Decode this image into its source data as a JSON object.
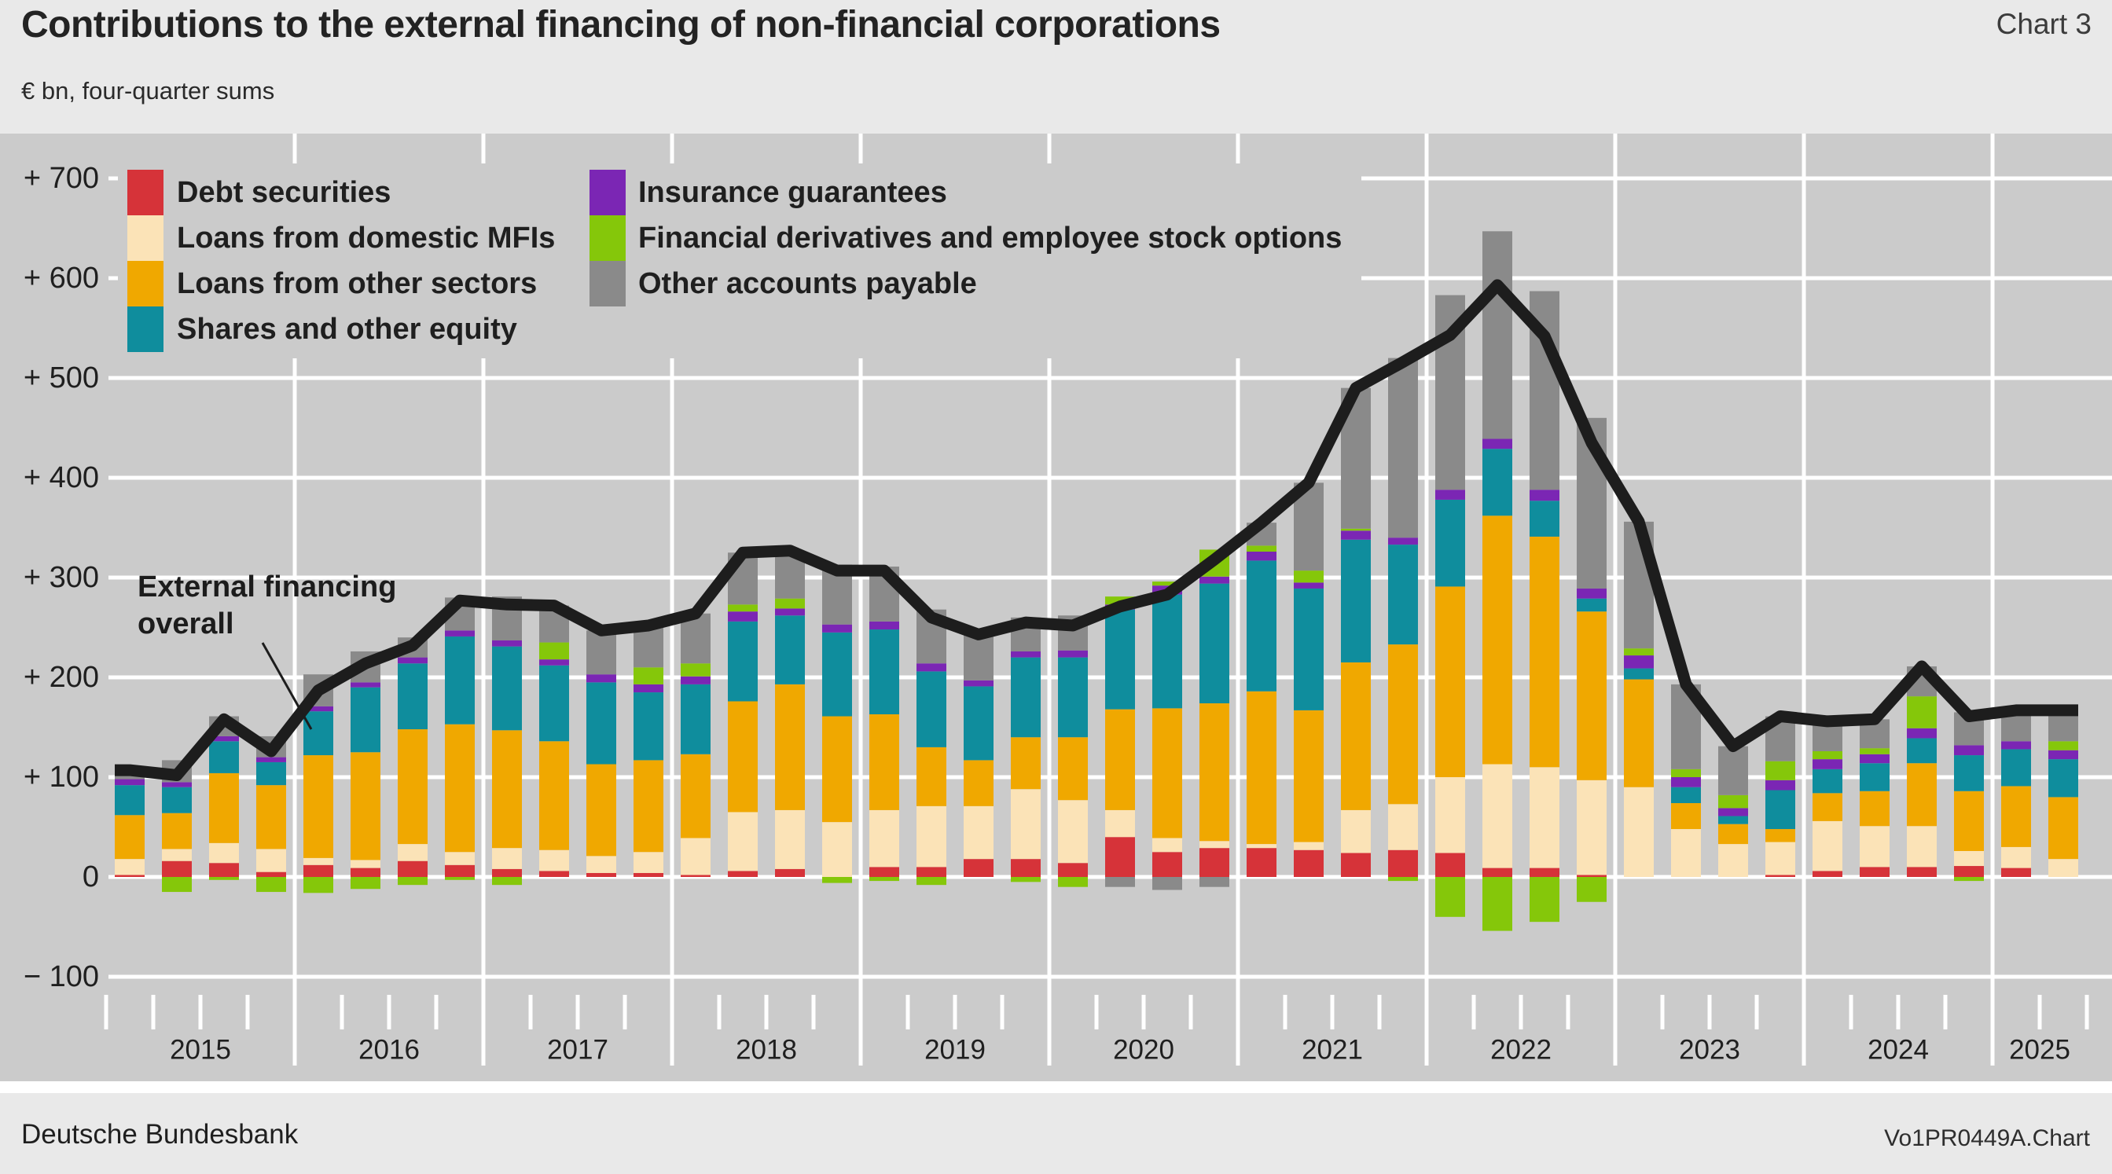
{
  "header": {
    "title": "Contributions to the external financing of non-financial corporations",
    "subtitle": "€ bn, four-quarter sums",
    "chart_label": "Chart 3"
  },
  "annotation": {
    "line1": "External financing",
    "line2": "overall"
  },
  "footer": {
    "source": "Deutsche Bundesbank",
    "chart_id": "Vo1PR0449A.Chart"
  },
  "colors": {
    "debt_securities": "#d63339",
    "loans_domestic_mfis": "#fbe3b7",
    "loans_other_sectors": "#f0a800",
    "shares_other_equity": "#0f8d9d",
    "insurance_guarantees": "#7b26b4",
    "financial_derivatives": "#85c70a",
    "other_accounts_payable": "#8a8a8a",
    "overall_line": "#1d1d1d",
    "plot_background": "#cbcbcb",
    "page_background": "#e9e9e9",
    "gridline": "#ffffff",
    "text": "#1f1f1f"
  },
  "legend": {
    "left": [
      {
        "label": "Debt securities",
        "key": "debt_securities"
      },
      {
        "label": "Loans from domestic MFIs",
        "key": "loans_domestic_mfis"
      },
      {
        "label": "Loans from other sectors",
        "key": "loans_other_sectors"
      },
      {
        "label": "Shares and other equity",
        "key": "shares_other_equity"
      }
    ],
    "right": [
      {
        "label": "Insurance guarantees",
        "key": "insurance_guarantees"
      },
      {
        "label": "Financial derivatives and employee stock options",
        "key": "financial_derivatives"
      },
      {
        "label": "Other accounts payable",
        "key": "other_accounts_payable"
      }
    ]
  },
  "chart_data": {
    "type": "bar",
    "subtype": "stacked-bar-with-line",
    "title": "Contributions to the external financing of non-financial corporations",
    "unit": "€ bn, four-quarter sums",
    "grid": true,
    "legend_position": "top-left-inside",
    "categories": [
      "2015 Q1",
      "2015 Q2",
      "2015 Q3",
      "2015 Q4",
      "2016 Q1",
      "2016 Q2",
      "2016 Q3",
      "2016 Q4",
      "2017 Q1",
      "2017 Q2",
      "2017 Q3",
      "2017 Q4",
      "2018 Q1",
      "2018 Q2",
      "2018 Q3",
      "2018 Q4",
      "2019 Q1",
      "2019 Q2",
      "2019 Q3",
      "2019 Q4",
      "2020 Q1",
      "2020 Q2",
      "2020 Q3",
      "2020 Q4",
      "2021 Q1",
      "2021 Q2",
      "2021 Q3",
      "2021 Q4",
      "2022 Q1",
      "2022 Q2",
      "2022 Q3",
      "2022 Q4",
      "2023 Q1",
      "2023 Q2",
      "2023 Q3",
      "2023 Q4",
      "2024 Q1",
      "2024 Q2",
      "2024 Q3",
      "2024 Q4",
      "2025 Q1",
      "2025 Q2"
    ],
    "x_year_labels": [
      "2015",
      "2016",
      "2017",
      "2018",
      "2019",
      "2020",
      "2021",
      "2022",
      "2023",
      "2024",
      "2025"
    ],
    "bars_per_year": [
      4,
      4,
      4,
      4,
      4,
      4,
      4,
      4,
      4,
      4,
      2
    ],
    "y_axis": {
      "min": -100,
      "max": 700,
      "tick_step": 100,
      "tick_values": [
        700,
        600,
        500,
        400,
        300,
        200,
        100,
        0,
        -100
      ],
      "tick_labels": [
        "+ 700",
        "+ 600",
        "+ 500",
        "+ 400",
        "+ 300",
        "+ 200",
        "+ 100",
        "0",
        "− 100"
      ]
    },
    "series": [
      {
        "name": "Debt securities",
        "color_key": "debt_securities",
        "values": [
          2,
          16,
          14,
          5,
          12,
          9,
          16,
          12,
          8,
          6,
          4,
          4,
          2,
          6,
          8,
          0,
          10,
          10,
          18,
          18,
          14,
          40,
          25,
          29,
          29,
          27,
          24,
          27,
          24,
          9,
          9,
          2,
          0,
          0,
          0,
          2,
          6,
          10,
          10,
          11,
          9,
          0
        ]
      },
      {
        "name": "Loans from domestic MFIs",
        "color_key": "loans_domestic_mfis",
        "values": [
          16,
          12,
          20,
          23,
          7,
          8,
          17,
          13,
          21,
          21,
          17,
          21,
          37,
          59,
          59,
          55,
          57,
          61,
          53,
          70,
          63,
          27,
          14,
          7,
          4,
          8,
          43,
          46,
          76,
          104,
          101,
          95,
          90,
          48,
          33,
          33,
          50,
          41,
          41,
          15,
          21,
          18
        ]
      },
      {
        "name": "Loans from other sectors",
        "color_key": "loans_other_sectors",
        "values": [
          44,
          36,
          70,
          64,
          103,
          108,
          115,
          128,
          118,
          109,
          92,
          92,
          84,
          111,
          126,
          106,
          96,
          59,
          46,
          52,
          63,
          101,
          130,
          138,
          153,
          132,
          148,
          160,
          191,
          249,
          231,
          169,
          108,
          26,
          20,
          13,
          28,
          35,
          63,
          60,
          61,
          62
        ]
      },
      {
        "name": "Shares and other equity",
        "color_key": "shares_other_equity",
        "values": [
          30,
          26,
          32,
          23,
          44,
          65,
          66,
          88,
          84,
          76,
          82,
          68,
          70,
          80,
          69,
          84,
          85,
          76,
          74,
          80,
          80,
          100,
          114,
          120,
          131,
          122,
          123,
          100,
          87,
          67,
          36,
          13,
          11,
          16,
          8,
          39,
          24,
          28,
          25,
          36,
          37,
          38
        ]
      },
      {
        "name": "Insurance guarantees",
        "color_key": "insurance_guarantees",
        "values": [
          6,
          5,
          5,
          5,
          5,
          5,
          6,
          6,
          6,
          6,
          8,
          8,
          8,
          10,
          7,
          8,
          8,
          8,
          6,
          6,
          7,
          5,
          9,
          7,
          9,
          6,
          9,
          7,
          10,
          10,
          11,
          10,
          13,
          10,
          8,
          10,
          10,
          9,
          10,
          10,
          8,
          9
        ]
      },
      {
        "name": "Financial derivatives and employee stock options",
        "color_key": "financial_derivatives",
        "values": [
          0,
          -15,
          -3,
          -15,
          -16,
          -12,
          -8,
          -3,
          -8,
          17,
          0,
          17,
          13,
          7,
          10,
          -6,
          -4,
          -8,
          0,
          -5,
          -10,
          8,
          4,
          27,
          6,
          12,
          2,
          -4,
          -40,
          -54,
          -45,
          -25,
          7,
          8,
          13,
          19,
          8,
          6,
          32,
          -4,
          0,
          9
        ]
      },
      {
        "name": "Other accounts payable",
        "color_key": "other_accounts_payable",
        "values": [
          9,
          22,
          20,
          21,
          32,
          31,
          20,
          33,
          44,
          37,
          44,
          42,
          50,
          52,
          48,
          60,
          55,
          54,
          46,
          34,
          35,
          -10,
          -13,
          -10,
          23,
          88,
          141,
          180,
          195,
          208,
          199,
          171,
          127,
          85,
          49,
          45,
          30,
          29,
          30,
          33,
          31,
          31
        ]
      }
    ],
    "line_series": {
      "name": "External financing overall",
      "color_key": "overall_line",
      "values": [
        107,
        102,
        158,
        126,
        187,
        214,
        232,
        277,
        273,
        272,
        247,
        252,
        264,
        325,
        327,
        307,
        307,
        260,
        243,
        255,
        252,
        271,
        283,
        318,
        355,
        395,
        490,
        516,
        543,
        593,
        542,
        435,
        356,
        193,
        131,
        161,
        156,
        158,
        211,
        161,
        167,
        167
      ]
    }
  }
}
